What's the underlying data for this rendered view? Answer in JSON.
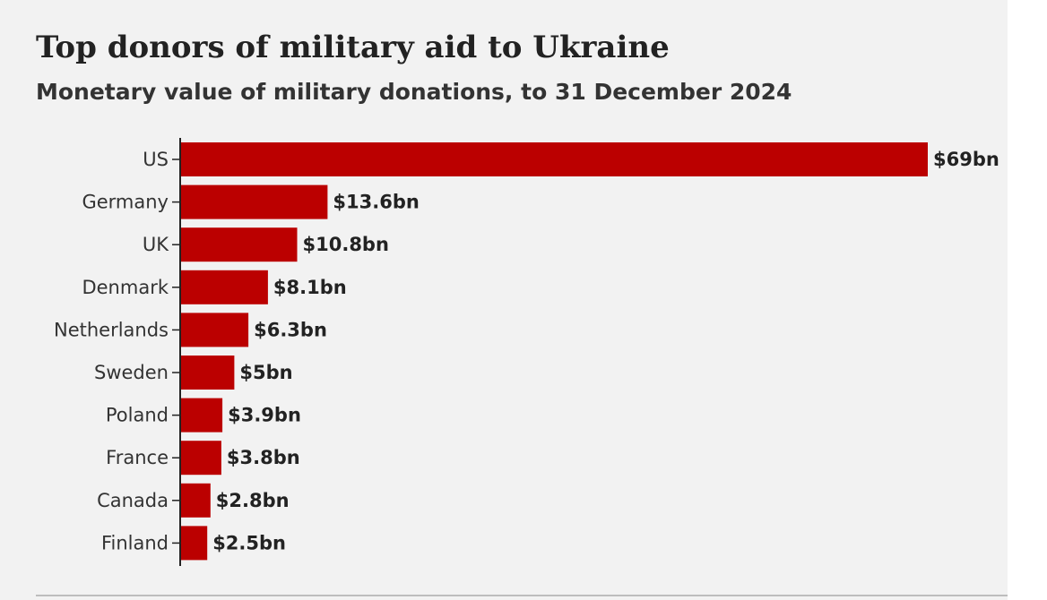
{
  "title": "Top donors of military aid to Ukraine",
  "subtitle": "Monetary value of military donations, to 31 December 2024",
  "colors": {
    "bar": "#bb0000",
    "background": "#f2f2f2",
    "axis": "#222222"
  },
  "chart_data": {
    "type": "bar",
    "orientation": "horizontal",
    "categories": [
      "US",
      "Germany",
      "UK",
      "Denmark",
      "Netherlands",
      "Sweden",
      "Poland",
      "France",
      "Canada",
      "Finland"
    ],
    "values": [
      69,
      13.6,
      10.8,
      8.1,
      6.3,
      5,
      3.9,
      3.8,
      2.8,
      2.5
    ],
    "unit": "$bn",
    "value_labels": [
      "$69bn",
      "$13.6bn",
      "$10.8bn",
      "$8.1bn",
      "$6.3bn",
      "$5bn",
      "$3.9bn",
      "$3.8bn",
      "$2.8bn",
      "$2.5bn"
    ],
    "title": "Top donors of military aid to Ukraine",
    "subtitle": "Monetary value of military donations, to 31 December 2024",
    "xlabel": "",
    "ylabel": "",
    "xlim": [
      0,
      69
    ],
    "grid": false,
    "legend": "none"
  }
}
